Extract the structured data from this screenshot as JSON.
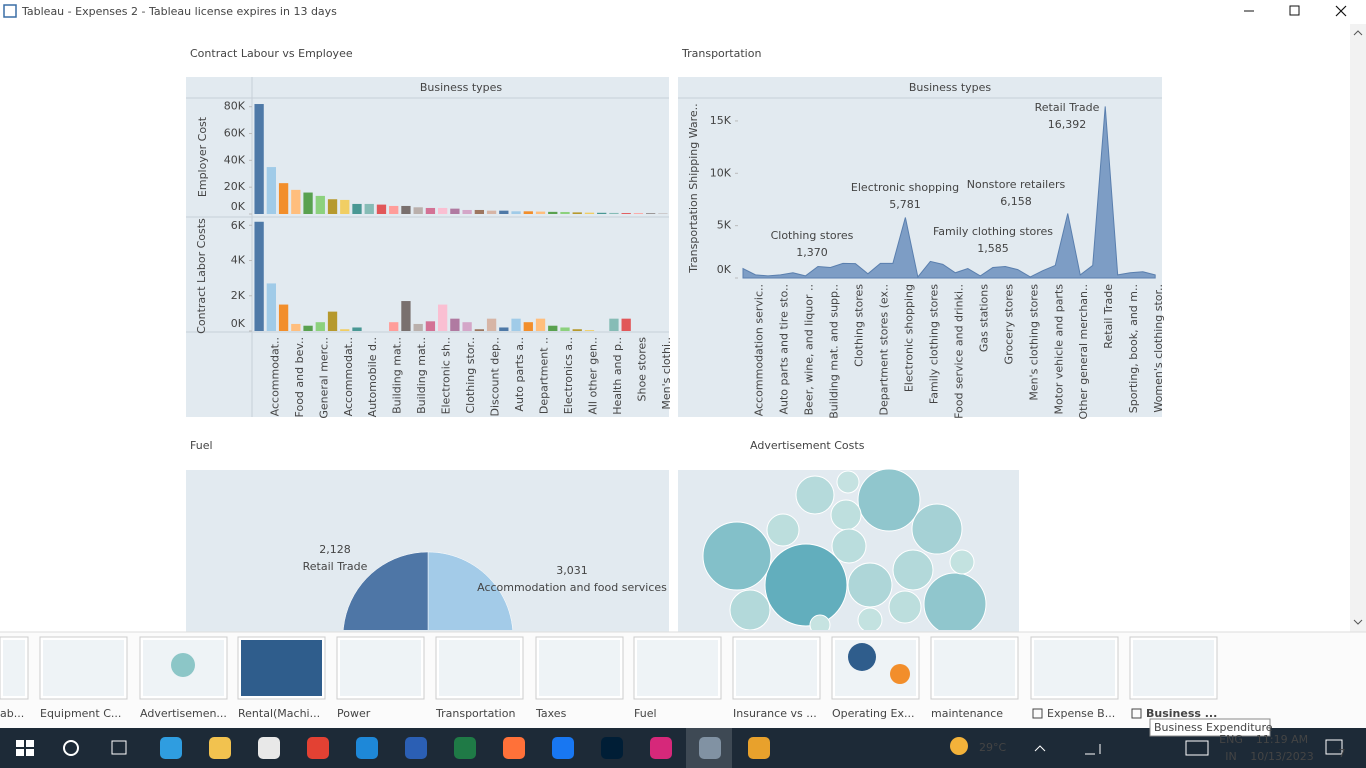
{
  "window": {
    "title": "Tableau - Expenses 2 - Tableau license expires in 13 days"
  },
  "chart_data": [
    {
      "type": "bar",
      "title": "Contract Labour vs Employee",
      "header": "Business types",
      "categories": [
        null,
        "Accommodat..",
        null,
        "Food and bev..",
        null,
        "General merc..",
        null,
        "Accommodat..",
        null,
        "Automobile d..",
        null,
        "Building mat..",
        null,
        "Building mat..",
        null,
        "Electronic sh..",
        null,
        "Clothing stor..",
        null,
        "Discount dep..",
        null,
        "Auto parts a..",
        null,
        "Department ..",
        null,
        "Electronics a..",
        null,
        "All other gen..",
        null,
        "Health and p..",
        null,
        "Shoe stores",
        null,
        "Men's clothi.."
      ],
      "colors": [
        "#4e79a7",
        "#a0cbe8",
        "#f28e2b",
        "#ffbe7d",
        "#59a14f",
        "#8cd17d",
        "#b6992d",
        "#f1ce63",
        "#499894",
        "#86bcb6",
        "#e15759",
        "#ff9d9a",
        "#79706e",
        "#bab0ac",
        "#d37295",
        "#fabfd2",
        "#b07aa1",
        "#d4a6c8",
        "#9d7660",
        "#d7b5a6",
        "#4e79a7",
        "#a0cbe8",
        "#f28e2b",
        "#ffbe7d",
        "#59a14f",
        "#8cd17d",
        "#b6992d",
        "#f1ce63",
        "#499894",
        "#86bcb6",
        "#e15759",
        "#ff9d9a",
        "#79706e",
        "#bab0ac"
      ],
      "panels": [
        {
          "ylabel": "Employer Cost",
          "ylim": [
            0,
            85000
          ],
          "yticks": [
            {
              "value": 0,
              "label": "0K"
            },
            {
              "value": 20000,
              "label": "20K"
            },
            {
              "value": 40000,
              "label": "40K"
            },
            {
              "value": 60000,
              "label": "60K"
            },
            {
              "value": 80000,
              "label": "80K"
            }
          ],
          "values": [
            82000,
            35000,
            23000,
            18000,
            16000,
            13500,
            11000,
            10500,
            7500,
            7500,
            7000,
            6000,
            6000,
            5000,
            4500,
            4500,
            4000,
            3000,
            3000,
            2500,
            2500,
            2000,
            2000,
            1800,
            1600,
            1500,
            1200,
            1000,
            900,
            800,
            700,
            600,
            500,
            400
          ]
        },
        {
          "ylabel": "Contract Labor Costs",
          "ylim": [
            0,
            6300
          ],
          "yticks": [
            {
              "value": 0,
              "label": "0K"
            },
            {
              "value": 2000,
              "label": "2K"
            },
            {
              "value": 4000,
              "label": "4K"
            },
            {
              "value": 6000,
              "label": "6K"
            }
          ],
          "values": [
            6200,
            2700,
            1500,
            400,
            300,
            500,
            1100,
            100,
            200,
            0,
            0,
            500,
            1700,
            400,
            550,
            1500,
            700,
            500,
            100,
            700,
            200,
            700,
            500,
            700,
            300,
            200,
            100,
            50,
            0,
            700,
            700,
            0,
            0,
            0
          ]
        }
      ]
    },
    {
      "type": "area",
      "title": "Transportation",
      "header": "Business types",
      "ylabel": "Transportation Shipping Ware..",
      "categories": [
        null,
        "Accommodation servic..",
        null,
        "Auto parts and tire sto..",
        null,
        "Beer, wine, and liquor ..",
        null,
        "Building mat. and supp..",
        null,
        "Clothing stores",
        null,
        "Department stores (ex..",
        null,
        "Electronic shopping",
        null,
        "Family clothing stores",
        null,
        "Food service and drinki..",
        null,
        "Gas stations",
        null,
        "Grocery stores",
        null,
        "Men's clothing stores",
        null,
        "Motor vehicle and parts",
        null,
        "Other general merchan..",
        null,
        "Retail Trade",
        null,
        "Sporting, book, and m..",
        null,
        "Women's clothing stor.."
      ],
      "values": [
        900,
        300,
        200,
        300,
        500,
        200,
        1100,
        1000,
        1400,
        1370,
        400,
        1400,
        1400,
        5781,
        100,
        1585,
        1300,
        500,
        900,
        200,
        1000,
        1100,
        800,
        100,
        700,
        1200,
        6158,
        300,
        1200,
        16392,
        300,
        500,
        600,
        300
      ],
      "annotations": [
        null,
        null,
        null,
        null,
        null,
        null,
        null,
        null,
        null,
        "Clothing stores",
        null,
        null,
        null,
        "Electronic shopping",
        null,
        "Family clothing stores",
        null,
        null,
        null,
        null,
        null,
        null,
        null,
        null,
        null,
        null,
        "Nonstore retailers",
        null,
        null,
        "Retail Trade",
        null,
        null,
        null,
        null
      ],
      "value_labels": [
        null,
        null,
        null,
        null,
        null,
        null,
        null,
        null,
        null,
        "1,370",
        null,
        null,
        null,
        "5,781",
        null,
        "1,585",
        null,
        null,
        null,
        null,
        null,
        null,
        null,
        null,
        null,
        null,
        "6,158",
        null,
        null,
        "16,392",
        null,
        null,
        null,
        null
      ],
      "color": "#7d9dc5",
      "line_color": "#5a7fae",
      "ylim": [
        0,
        17000
      ],
      "yticks": [
        {
          "value": 0,
          "label": "0K"
        },
        {
          "value": 5000,
          "label": "5K"
        },
        {
          "value": 10000,
          "label": "10K"
        },
        {
          "value": 15000,
          "label": "15K"
        }
      ]
    },
    {
      "type": "pie",
      "title": "Fuel",
      "categories": [
        "Accommodation and food services",
        "Retail Trade"
      ],
      "values": [
        3031,
        2128
      ],
      "value_labels": [
        "3,031",
        "2,128"
      ],
      "colors": [
        "#a3cbe8",
        "#4e76a6"
      ]
    },
    {
      "type": "bubble",
      "title": "Advertisement Costs",
      "values": [
        1681,
        1156,
        961,
        625,
        961,
        361,
        256,
        225,
        121,
        289,
        484,
        400,
        400,
        256,
        144,
        144,
        100
      ],
      "color_range": [
        "#c6e3e1",
        "#62aebd"
      ]
    }
  ],
  "sheet_tabs": [
    "ab...",
    "Equipment C...",
    "Advertisemen...",
    "Rental(Machi...",
    "Power",
    "Transportation",
    "Taxes",
    "Fuel",
    "Insurance vs ...",
    "Operating Ex...",
    "maintenance",
    "Expense B...",
    "Business ..."
  ],
  "tooltip": "Business Expenditure",
  "taskbar": {
    "weather": "29°C",
    "language": "ENG",
    "region": "IN",
    "time": "11:19 AM",
    "date": "10/13/2023",
    "notifications": "7"
  }
}
